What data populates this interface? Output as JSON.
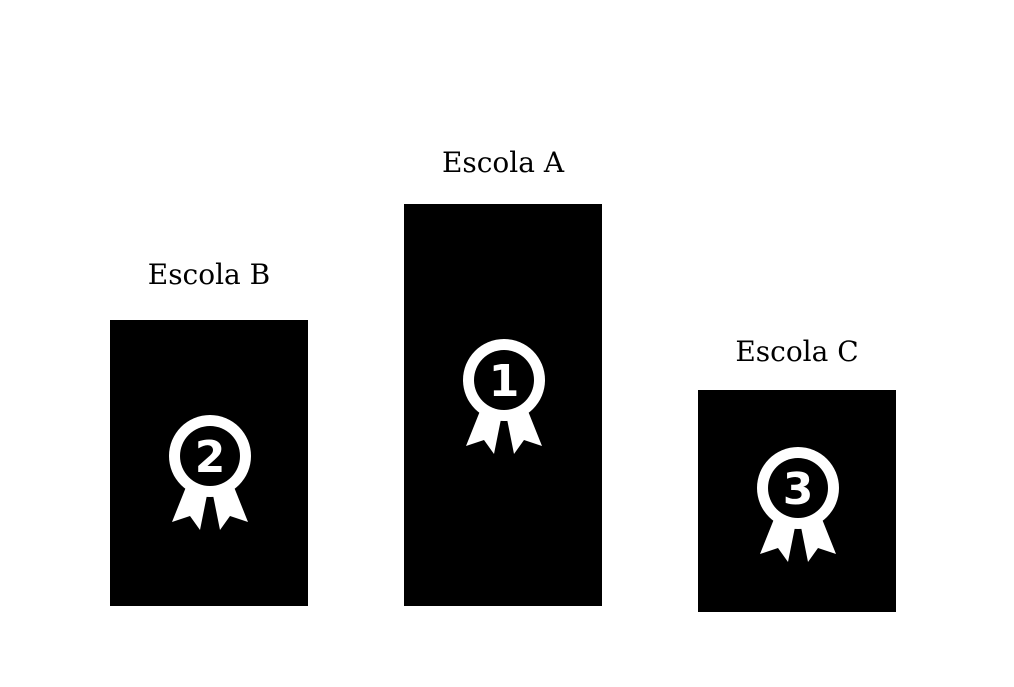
{
  "podium": {
    "places": [
      {
        "school": "Escola B",
        "rank": "2",
        "icon": "ribbon-medal-icon"
      },
      {
        "school": "Escola A",
        "rank": "1",
        "icon": "ribbon-medal-icon"
      },
      {
        "school": "Escola C",
        "rank": "3",
        "icon": "ribbon-medal-icon"
      }
    ]
  },
  "colors": {
    "block": "#000000",
    "medal": "#ffffff",
    "background": "#ffffff"
  }
}
